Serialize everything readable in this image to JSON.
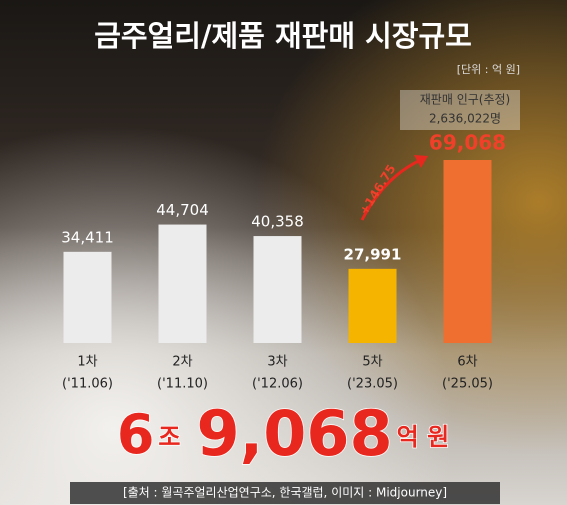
{
  "chart_data": {
    "type": "bar",
    "title": "금주얼리/제품 재판매 시장규모",
    "unit_note": "[단위 : 억 원]",
    "categories": [
      "1차",
      "2차",
      "3차",
      "5차",
      "6차"
    ],
    "periods": [
      "('11.06)",
      "('11.10)",
      "('12.06)",
      "('23.05)",
      "('25.05)"
    ],
    "values": [
      34411,
      44704,
      40358,
      27991,
      69068
    ],
    "value_labels": [
      "34,411",
      "44,704",
      "40,358",
      "27,991",
      "69,068"
    ],
    "colors": [
      "#ececec",
      "#ececec",
      "#ececec",
      "#f5b400",
      "#ee6f2f"
    ],
    "label_colors": [
      "#ffffff",
      "#ffffff",
      "#ffffff",
      "#ffffff",
      "#f0402a"
    ],
    "growth_annotation": "+146.75",
    "population_title": "재판매 인구(추정)",
    "population_value": "2,636,022명",
    "headline": {
      "trillion": "6",
      "trillion_unit": "조",
      "billion": "9,068",
      "billion_unit": "억 원"
    },
    "source": "[출처 : 월곡주얼리산업연구소, 한국갤럽, 이미지 : Midjourney]"
  }
}
